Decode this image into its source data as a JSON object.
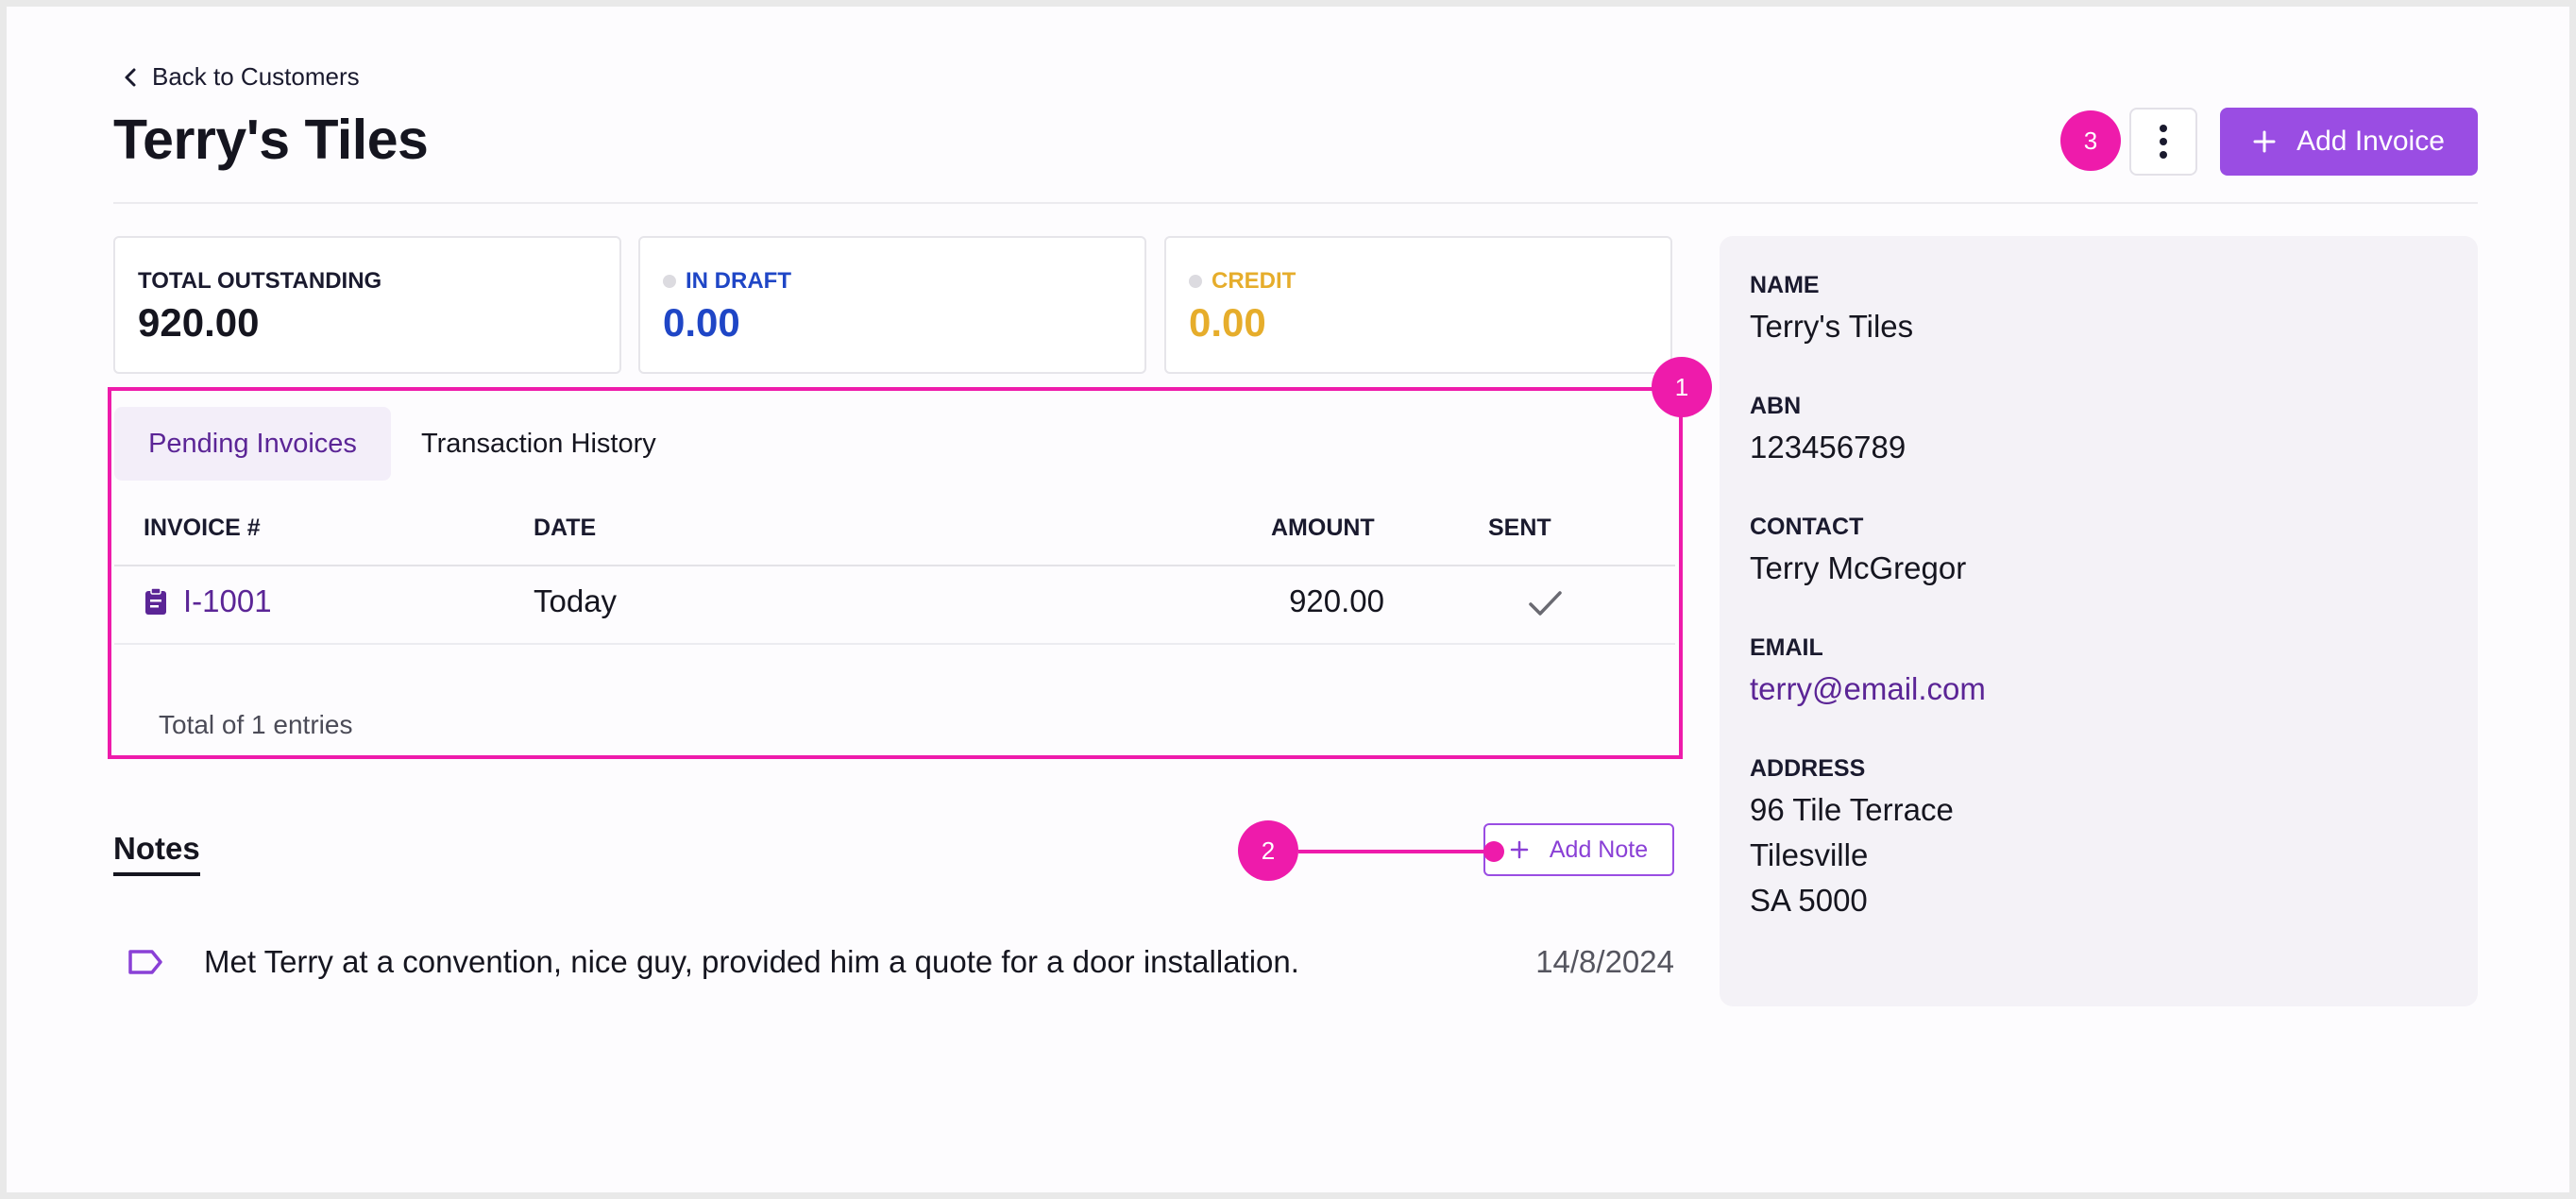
{
  "header": {
    "back_label": "Back to Customers",
    "title": "Terry's Tiles",
    "add_invoice_label": "Add Invoice",
    "more_menu_icon": "kebab-icon"
  },
  "stats": [
    {
      "label": "TOTAL OUTSTANDING",
      "value": "920.00",
      "color": "#15151f"
    },
    {
      "label": "IN DRAFT",
      "value": "0.00",
      "color": "#1f46c6"
    },
    {
      "label": "CREDIT",
      "value": "0.00",
      "color": "#e6ad2b"
    }
  ],
  "tabs": [
    {
      "label": "Pending Invoices",
      "active": true
    },
    {
      "label": "Transaction History",
      "active": false
    }
  ],
  "table": {
    "columns": [
      "INVOICE #",
      "DATE",
      "AMOUNT",
      "SENT"
    ],
    "rows": [
      {
        "invoice": "I-1001",
        "date": "Today",
        "amount": "920.00",
        "sent": true
      }
    ],
    "footer": "Total of 1 entries"
  },
  "notes": {
    "title": "Notes",
    "add_label": "Add Note",
    "items": [
      {
        "text": "Met Terry at a convention, nice guy, provided him a quote for a door installation.",
        "date": "14/8/2024"
      }
    ]
  },
  "customer": {
    "name_label": "NAME",
    "name": "Terry's Tiles",
    "abn_label": "ABN",
    "abn": "123456789",
    "contact_label": "CONTACT",
    "contact": "Terry McGregor",
    "email_label": "EMAIL",
    "email": "terry@email.com",
    "address_label": "ADDRESS",
    "address_lines": [
      "96 Tile Terrace",
      "Tilesville",
      "SA 5000"
    ]
  },
  "callouts": [
    "1",
    "2",
    "3"
  ],
  "colors": {
    "accent": "#9a4de3",
    "callout": "#ee1bab",
    "link": "#5b2596"
  }
}
